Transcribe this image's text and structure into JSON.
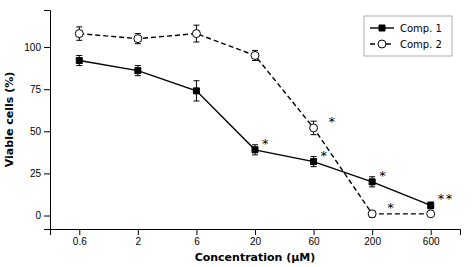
{
  "chart_data": {
    "type": "line",
    "xlabel": "Concentration (μM)",
    "ylabel": "Viable cells (%)",
    "categories": [
      "0.6",
      "2",
      "6",
      "20",
      "60",
      "200",
      "600"
    ],
    "series": [
      {
        "name": "Comp. 1",
        "color": "black",
        "marker": "square",
        "line_style": "solid",
        "values": [
          92,
          86,
          74,
          39,
          32,
          20,
          6
        ],
        "yerr": [
          3,
          3,
          6,
          3,
          3,
          3,
          2
        ]
      },
      {
        "name": "Comp. 2",
        "color": "black",
        "marker": "circle-open",
        "line_style": "dashed",
        "values": [
          108,
          105,
          108,
          95,
          52,
          1,
          1
        ],
        "yerr": [
          4,
          3,
          5,
          3,
          4,
          2,
          1
        ]
      }
    ],
    "annotations": [
      {
        "text": "*",
        "x": "20",
        "y": 44,
        "series": "Comp. 1"
      },
      {
        "text": "*",
        "x": "60",
        "y": 37,
        "series": "Comp. 1"
      },
      {
        "text": "*",
        "x": "200",
        "y": 25,
        "series": "Comp. 1"
      },
      {
        "text": "*",
        "x": "600",
        "y": 11,
        "series": "Comp. 1"
      },
      {
        "text": "*",
        "x": "60",
        "y": 57,
        "series": "Comp. 2"
      },
      {
        "text": "*",
        "x": "200",
        "y": 6,
        "series": "Comp. 2"
      },
      {
        "text": "*",
        "x": "600",
        "y": 11,
        "series": "Comp. 2"
      }
    ],
    "ylim": [
      -8,
      122
    ],
    "yticks": [
      0,
      25,
      50,
      75,
      100
    ],
    "grid": false,
    "legend": "upper right"
  }
}
